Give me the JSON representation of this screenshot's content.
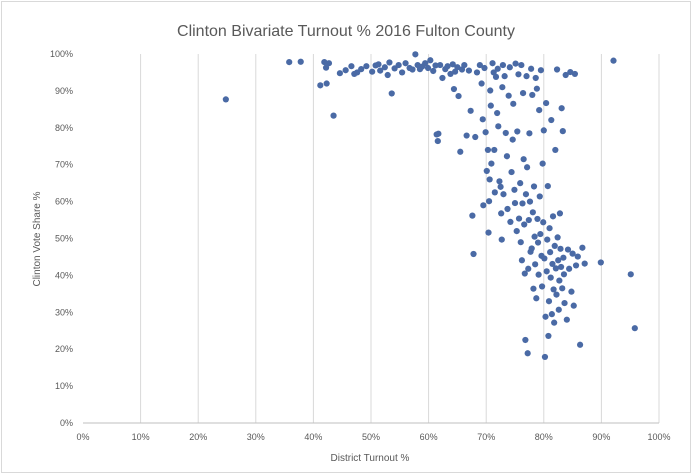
{
  "chart_data": {
    "type": "scatter",
    "title": "Clinton Bivariate Turnout % 2016 Fulton County",
    "xlabel": "District Turnout %",
    "ylabel": "Clinton Vote Share %",
    "xlim": [
      0,
      100
    ],
    "ylim": [
      0,
      100
    ],
    "x_tick_labels": [
      "0%",
      "10%",
      "20%",
      "30%",
      "40%",
      "50%",
      "60%",
      "70%",
      "80%",
      "90%",
      "100%"
    ],
    "y_tick_labels": [
      "0%",
      "10%",
      "20%",
      "30%",
      "40%",
      "50%",
      "60%",
      "70%",
      "80%",
      "90%",
      "100%"
    ],
    "grid": "vertical",
    "legend": "none",
    "marker_color": "#4a6aa5",
    "series": [
      {
        "points": [
          [
            24.8,
            87.7
          ],
          [
            35.8,
            97.8
          ],
          [
            37.8,
            97.9
          ],
          [
            41.2,
            91.5
          ],
          [
            41.9,
            97.8
          ],
          [
            42.2,
            96.3
          ],
          [
            42.3,
            92.0
          ],
          [
            42.7,
            97.5
          ],
          [
            43.5,
            83.3
          ],
          [
            44.6,
            94.8
          ],
          [
            45.6,
            95.6
          ],
          [
            46.6,
            96.7
          ],
          [
            47.1,
            94.6
          ],
          [
            47.6,
            95.0
          ],
          [
            48.3,
            95.9
          ],
          [
            49.2,
            96.7
          ],
          [
            50.2,
            95.2
          ],
          [
            50.8,
            96.9
          ],
          [
            51.3,
            97.2
          ],
          [
            51.6,
            95.5
          ],
          [
            52.4,
            96.4
          ],
          [
            52.9,
            94.3
          ],
          [
            53.2,
            97.7
          ],
          [
            53.6,
            89.3
          ],
          [
            54.1,
            96.1
          ],
          [
            54.8,
            97.0
          ],
          [
            55.4,
            95.0
          ],
          [
            56.0,
            97.5
          ],
          [
            56.7,
            96.2
          ],
          [
            57.2,
            95.8
          ],
          [
            57.7,
            99.9
          ],
          [
            58.1,
            97.0
          ],
          [
            58.5,
            95.9
          ],
          [
            58.9,
            96.6
          ],
          [
            59.4,
            97.5
          ],
          [
            59.9,
            96.2
          ],
          [
            60.3,
            98.3
          ],
          [
            60.8,
            95.4
          ],
          [
            61.2,
            96.9
          ],
          [
            61.4,
            78.2
          ],
          [
            61.6,
            76.4
          ],
          [
            61.7,
            78.4
          ],
          [
            62.0,
            97.0
          ],
          [
            62.4,
            93.5
          ],
          [
            62.9,
            95.9
          ],
          [
            63.3,
            96.7
          ],
          [
            63.8,
            94.6
          ],
          [
            64.2,
            97.2
          ],
          [
            64.4,
            90.5
          ],
          [
            64.6,
            95.2
          ],
          [
            65.0,
            96.4
          ],
          [
            65.2,
            88.6
          ],
          [
            65.5,
            73.5
          ],
          [
            65.8,
            95.8
          ],
          [
            66.2,
            97.0
          ],
          [
            66.6,
            77.9
          ],
          [
            67.0,
            95.5
          ],
          [
            67.3,
            84.6
          ],
          [
            67.6,
            56.2
          ],
          [
            67.8,
            45.8
          ],
          [
            68.1,
            77.5
          ],
          [
            68.4,
            95.0
          ],
          [
            68.9,
            97.0
          ],
          [
            69.2,
            92.0
          ],
          [
            69.4,
            82.3
          ],
          [
            69.5,
            59.0
          ],
          [
            69.7,
            96.2
          ],
          [
            69.9,
            78.8
          ],
          [
            70.1,
            68.3
          ],
          [
            70.3,
            74.0
          ],
          [
            70.4,
            51.6
          ],
          [
            70.5,
            60.1
          ],
          [
            70.6,
            66.0
          ],
          [
            70.7,
            90.1
          ],
          [
            70.8,
            86.0
          ],
          [
            70.9,
            70.3
          ],
          [
            71.1,
            97.5
          ],
          [
            71.3,
            95.0
          ],
          [
            71.4,
            74.0
          ],
          [
            71.5,
            62.5
          ],
          [
            71.7,
            93.8
          ],
          [
            71.9,
            84.0
          ],
          [
            72.0,
            96.0
          ],
          [
            72.1,
            80.4
          ],
          [
            72.3,
            65.5
          ],
          [
            72.5,
            64.0
          ],
          [
            72.6,
            56.8
          ],
          [
            72.7,
            49.7
          ],
          [
            72.8,
            91.0
          ],
          [
            72.9,
            97.0
          ],
          [
            73.0,
            62.0
          ],
          [
            73.2,
            94.0
          ],
          [
            73.4,
            78.6
          ],
          [
            73.6,
            72.3
          ],
          [
            73.7,
            58.0
          ],
          [
            73.9,
            88.7
          ],
          [
            74.1,
            96.4
          ],
          [
            74.2,
            54.5
          ],
          [
            74.4,
            68.0
          ],
          [
            74.6,
            76.8
          ],
          [
            74.7,
            86.5
          ],
          [
            74.9,
            63.2
          ],
          [
            75.0,
            59.6
          ],
          [
            75.1,
            97.4
          ],
          [
            75.3,
            52.0
          ],
          [
            75.4,
            79.0
          ],
          [
            75.6,
            94.5
          ],
          [
            75.7,
            55.4
          ],
          [
            75.9,
            65.0
          ],
          [
            76.0,
            49.0
          ],
          [
            76.1,
            97.0
          ],
          [
            76.2,
            44.1
          ],
          [
            76.3,
            59.5
          ],
          [
            76.4,
            89.4
          ],
          [
            76.5,
            71.5
          ],
          [
            76.6,
            53.8
          ],
          [
            76.7,
            40.5
          ],
          [
            76.8,
            22.5
          ],
          [
            76.9,
            62.0
          ],
          [
            77.0,
            94.0
          ],
          [
            77.1,
            69.3
          ],
          [
            77.2,
            18.9
          ],
          [
            77.3,
            41.8
          ],
          [
            77.4,
            55.0
          ],
          [
            77.5,
            78.5
          ],
          [
            77.6,
            60.0
          ],
          [
            77.7,
            46.4
          ],
          [
            77.8,
            96.0
          ],
          [
            77.9,
            47.3
          ],
          [
            78.0,
            88.9
          ],
          [
            78.1,
            57.1
          ],
          [
            78.2,
            36.4
          ],
          [
            78.3,
            64.1
          ],
          [
            78.4,
            50.5
          ],
          [
            78.5,
            43.0
          ],
          [
            78.6,
            93.5
          ],
          [
            78.7,
            33.8
          ],
          [
            78.8,
            90.6
          ],
          [
            78.9,
            55.3
          ],
          [
            79.0,
            48.9
          ],
          [
            79.1,
            40.2
          ],
          [
            79.2,
            84.8
          ],
          [
            79.3,
            61.4
          ],
          [
            79.4,
            51.2
          ],
          [
            79.5,
            95.6
          ],
          [
            79.6,
            45.3
          ],
          [
            79.7,
            37.0
          ],
          [
            79.8,
            70.3
          ],
          [
            79.9,
            54.4
          ],
          [
            80.0,
            79.3
          ],
          [
            80.1,
            44.6
          ],
          [
            80.2,
            17.9
          ],
          [
            80.3,
            28.8
          ],
          [
            80.4,
            86.7
          ],
          [
            80.5,
            41.1
          ],
          [
            80.6,
            49.7
          ],
          [
            80.7,
            64.2
          ],
          [
            80.8,
            23.6
          ],
          [
            80.9,
            33.0
          ],
          [
            81.0,
            52.8
          ],
          [
            81.1,
            46.3
          ],
          [
            81.2,
            39.4
          ],
          [
            81.3,
            82.1
          ],
          [
            81.4,
            29.5
          ],
          [
            81.5,
            43.1
          ],
          [
            81.6,
            56.0
          ],
          [
            81.7,
            36.2
          ],
          [
            81.8,
            27.2
          ],
          [
            81.9,
            48.0
          ],
          [
            82.0,
            74.0
          ],
          [
            82.1,
            41.9
          ],
          [
            82.2,
            34.8
          ],
          [
            82.3,
            95.8
          ],
          [
            82.4,
            50.3
          ],
          [
            82.5,
            44.1
          ],
          [
            82.6,
            30.7
          ],
          [
            82.7,
            38.6
          ],
          [
            82.8,
            56.8
          ],
          [
            82.9,
            47.2
          ],
          [
            83.0,
            42.3
          ],
          [
            83.1,
            85.3
          ],
          [
            83.2,
            36.5
          ],
          [
            83.3,
            79.1
          ],
          [
            83.4,
            44.8
          ],
          [
            83.5,
            40.3
          ],
          [
            83.6,
            32.5
          ],
          [
            83.8,
            94.3
          ],
          [
            84.0,
            28.0
          ],
          [
            84.2,
            47.0
          ],
          [
            84.4,
            41.8
          ],
          [
            84.6,
            95.1
          ],
          [
            84.8,
            35.6
          ],
          [
            85.0,
            45.9
          ],
          [
            85.2,
            31.8
          ],
          [
            85.4,
            94.6
          ],
          [
            85.6,
            42.7
          ],
          [
            85.9,
            45.1
          ],
          [
            86.3,
            21.2
          ],
          [
            86.7,
            47.5
          ],
          [
            87.1,
            43.2
          ],
          [
            89.9,
            43.5
          ],
          [
            92.1,
            98.2
          ],
          [
            95.1,
            40.3
          ],
          [
            95.8,
            25.7
          ]
        ]
      }
    ]
  }
}
